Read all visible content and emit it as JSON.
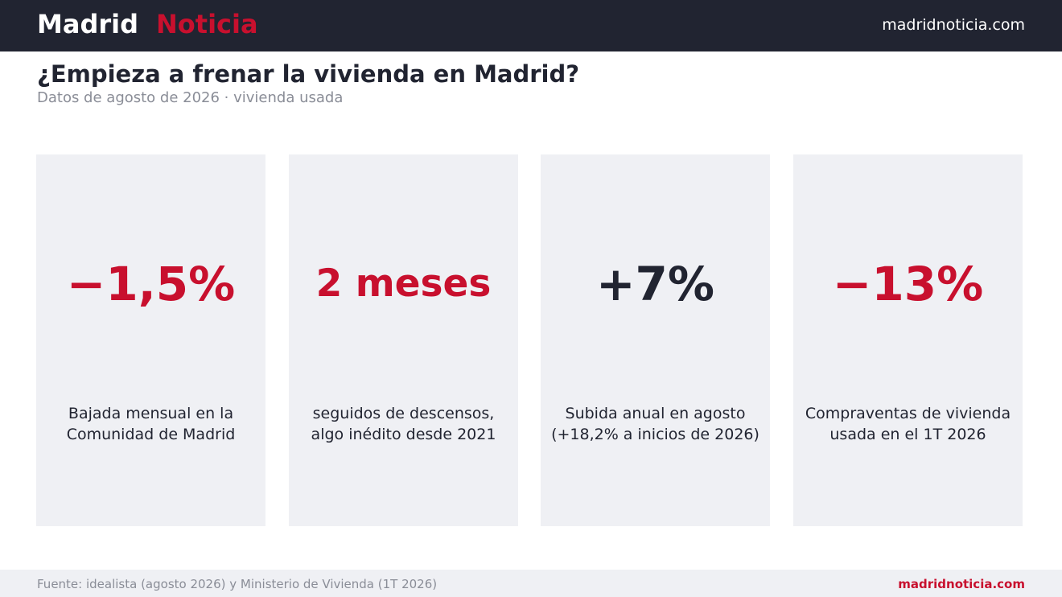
{
  "header": {
    "brand_first": "Madrid",
    "brand_second": "Noticia",
    "site_url": "madridnoticia.com",
    "background_color": "#212431",
    "accent_color": "#c8102e"
  },
  "title": "¿Empieza a frenar la vivienda en Madrid?",
  "subtitle": "Datos de agosto de 2026 · vivienda usada",
  "cards": [
    {
      "value": "−1,5%",
      "value_color": "#c8102e",
      "description": [
        "Bajada mensual en la",
        "Comunidad de Madrid"
      ]
    },
    {
      "value": "2 meses",
      "value_color": "#c8102e",
      "description": [
        "seguidos de descensos,",
        "algo inédito desde 2021"
      ]
    },
    {
      "value": "+7%",
      "value_color": "#212431",
      "description": [
        "Subida anual en agosto",
        "(+18,2% a inicios de 2026)"
      ]
    },
    {
      "value": "−13%",
      "value_color": "#c8102e",
      "description": [
        "Compraventas de vivienda",
        "usada en el 1T 2026"
      ]
    }
  ],
  "footer": {
    "source": "Fuente: idealista (agosto 2026) y Ministerio de Vivienda (1T 2026)",
    "site_url": "madridnoticia.com"
  }
}
